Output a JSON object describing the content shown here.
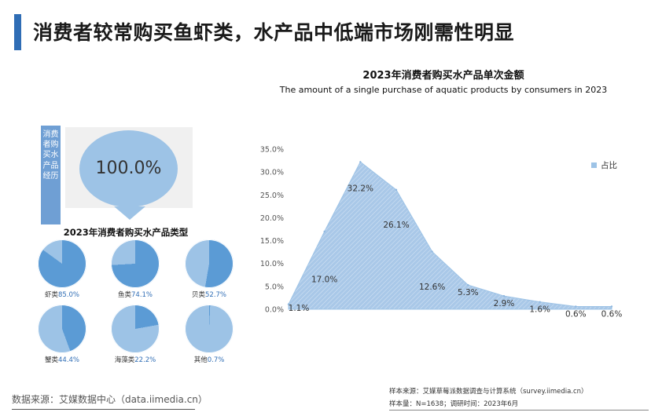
{
  "page": {
    "title": "消费者较常购买鱼虾类，水产品中低端市场刚需性明显"
  },
  "left_panel": {
    "side_label": "消费者购买水产品经历",
    "big_value": "100.0%",
    "pies_title": "2023年消费者购买水产品类型",
    "pies": [
      {
        "name": "虾类",
        "pct_text": "85.0%",
        "value": 0.85
      },
      {
        "name": "鱼类",
        "pct_text": "74.1%",
        "value": 0.741
      },
      {
        "name": "贝类",
        "pct_text": "52.7%",
        "value": 0.527
      },
      {
        "name": "蟹类",
        "pct_text": "44.4%",
        "value": 0.444
      },
      {
        "name": "海藻类",
        "pct_text": "22.2%",
        "value": 0.222
      },
      {
        "name": "其他",
        "pct_text": "0.7%",
        "value": 0.007
      }
    ],
    "colors": {
      "filled": "#5b9bd5",
      "empty": "#9dc3e6"
    }
  },
  "chart_data": {
    "type": "area",
    "title": "2023年消费者购买水产品单次金额",
    "subtitle": "The amount of a single purchase of aquatic products by consumers in 2023",
    "series": [
      {
        "name": "占比",
        "values": [
          1.1,
          17.0,
          32.2,
          26.1,
          12.6,
          5.3,
          2.9,
          1.6,
          0.6,
          0.6
        ]
      }
    ],
    "data_labels": [
      "1.1%",
      "17.0%",
      "32.2%",
      "26.1%",
      "12.6%",
      "5.3%",
      "2.9%",
      "1.6%",
      "0.6%",
      "0.6%"
    ],
    "y_ticks": [
      "0.0%",
      "5.0%",
      "10.0%",
      "15.0%",
      "20.0%",
      "25.0%",
      "30.0%",
      "35.0%"
    ],
    "ylim": [
      0,
      35
    ],
    "legend_position": "top-right",
    "color": "#9dc3e6"
  },
  "footer": {
    "source_left": "数据来源：艾媒数据中心（data.iimedia.cn）",
    "source_right_1": "样本来源：艾媒草莓派数据调查与计算系统（survey.iimedia.cn）",
    "source_right_2": "样本量：N=1638；调研时间：2023年6月"
  }
}
